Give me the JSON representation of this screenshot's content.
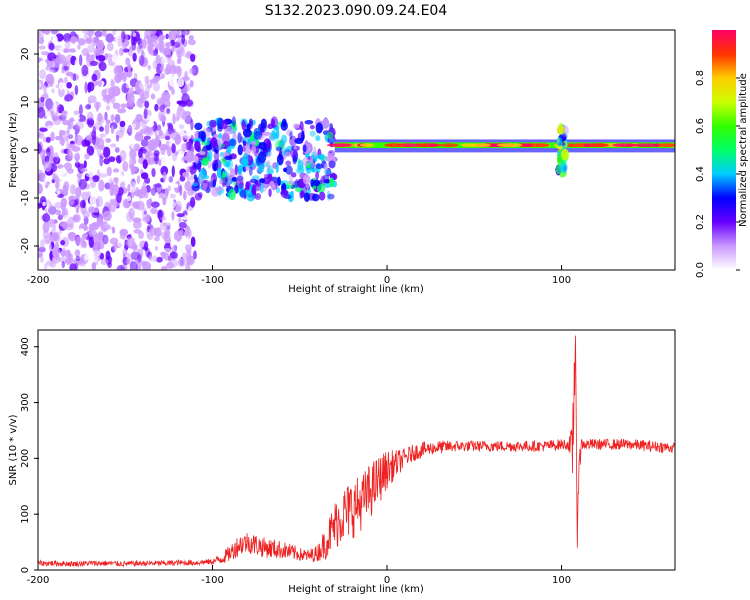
{
  "title": "S132.2023.090.09.24.E04",
  "chart_data": [
    {
      "type": "heatmap",
      "xlabel": "Height of straight line (km)",
      "ylabel": "Frequency (Hz)",
      "xlim": [
        -200,
        165
      ],
      "ylim": [
        -25,
        25
      ],
      "x_ticks": [
        "-200",
        "-100",
        "0",
        "100"
      ],
      "y_ticks": [
        "20",
        "10",
        "0",
        "-10",
        "-20"
      ],
      "colorbar": {
        "label": "Normalized spectral amplitude",
        "range": [
          0,
          1
        ],
        "ticks": [
          "0.0",
          "0.2",
          "0.4",
          "0.6",
          "0.8"
        ],
        "colors": [
          "#ffffff",
          "#cc99ff",
          "#6600ff",
          "#0000ff",
          "#00ccff",
          "#00ff66",
          "#33ff00",
          "#ccff00",
          "#ffcc00",
          "#ff3300",
          "#ff0066"
        ]
      },
      "regions": [
        {
          "x": [
            -200,
            -110
          ],
          "freq": [
            -25,
            25
          ],
          "amplitude": 0.1,
          "pattern": "diffuse purple speckle"
        },
        {
          "x": [
            -110,
            -30
          ],
          "freq": [
            -10,
            6
          ],
          "amplitude": 0.25,
          "pattern": "blue/cyan clusters near 0 Hz"
        },
        {
          "x": [
            -30,
            165
          ],
          "freq": [
            0,
            2
          ],
          "amplitude": 0.9,
          "pattern": "narrow line near 1 Hz"
        },
        {
          "x": [
            98,
            102
          ],
          "freq": [
            -5,
            5
          ],
          "amplitude": 0.4,
          "pattern": "vertical spike"
        }
      ]
    },
    {
      "type": "line",
      "xlabel": "Height of straight line (km)",
      "ylabel": "SNR (10 * v/v)",
      "xlim": [
        -200,
        165
      ],
      "ylim": [
        0,
        430
      ],
      "x_ticks": [
        "-200",
        "-100",
        "0",
        "100"
      ],
      "y_ticks": [
        "400",
        "300",
        "200",
        "100",
        "0"
      ],
      "color": "#ee2222",
      "series": [
        {
          "x": [
            -200,
            -190,
            -180,
            -170,
            -160,
            -150,
            -140,
            -130,
            -120,
            -110,
            -100,
            -95,
            -90,
            -85,
            -80,
            -75,
            -70,
            -65,
            -60,
            -55,
            -50,
            -45,
            -40,
            -35,
            -30,
            -25,
            -20,
            -15,
            -10,
            -5,
            0,
            5,
            10,
            15,
            20,
            25,
            30,
            40,
            50,
            60,
            70,
            80,
            90,
            100,
            104,
            106,
            107,
            108,
            109,
            110,
            112,
            115,
            120,
            130,
            140,
            150,
            160,
            165
          ],
          "y": [
            12,
            12,
            11,
            12,
            12,
            11,
            12,
            12,
            13,
            13,
            15,
            20,
            30,
            45,
            50,
            45,
            40,
            38,
            36,
            32,
            28,
            25,
            30,
            50,
            80,
            100,
            110,
            120,
            140,
            160,
            180,
            190,
            200,
            210,
            215,
            218,
            220,
            222,
            222,
            222,
            222,
            222,
            222,
            225,
            225,
            200,
            300,
            420,
            40,
            210,
            225,
            225,
            225,
            225,
            225,
            222,
            220,
            218
          ],
          "noise": [
            5,
            5,
            5,
            5,
            5,
            5,
            5,
            5,
            5,
            5,
            5,
            10,
            15,
            20,
            20,
            20,
            18,
            18,
            16,
            15,
            12,
            12,
            15,
            30,
            45,
            50,
            55,
            50,
            50,
            45,
            35,
            25,
            18,
            15,
            15,
            12,
            12,
            10,
            10,
            10,
            10,
            10,
            10,
            10,
            10,
            60,
            120,
            0,
            0,
            40,
            10,
            10,
            10,
            10,
            10,
            10,
            10,
            10
          ]
        }
      ]
    }
  ]
}
